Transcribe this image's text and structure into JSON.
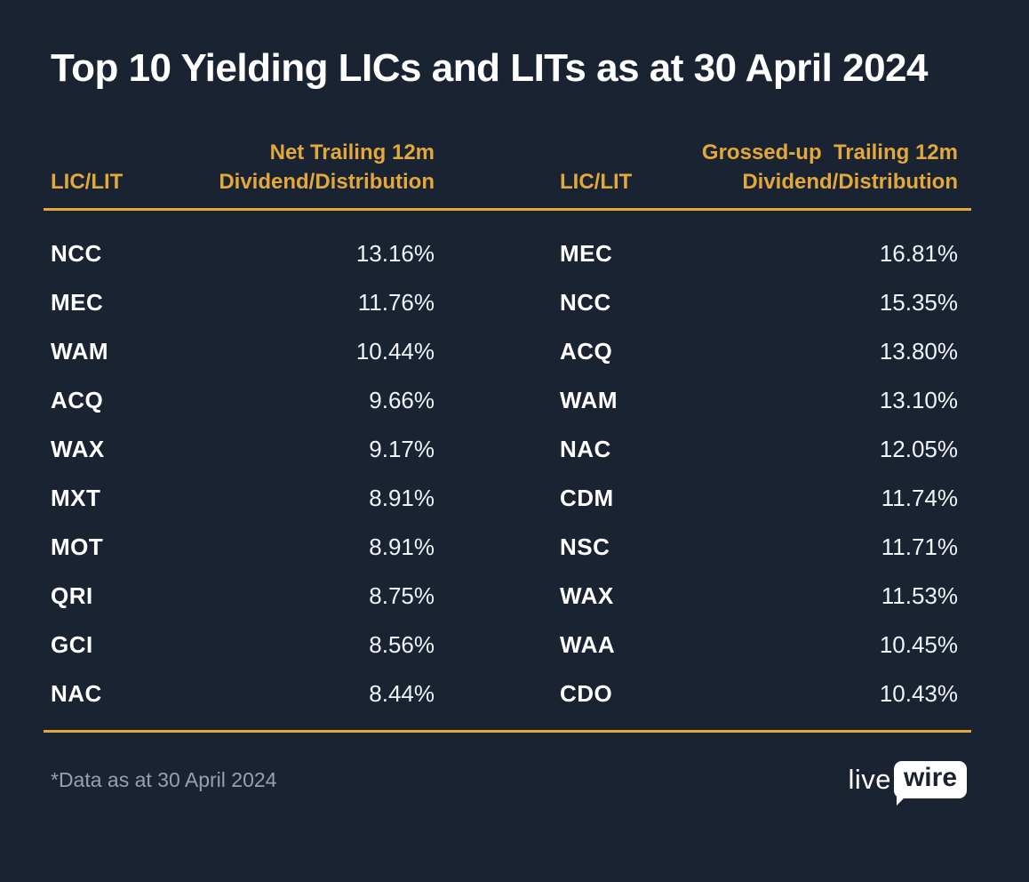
{
  "title": "Top 10 Yielding LICs and LITs as at 30 April 2024",
  "tables": [
    {
      "col1_header": "LIC/LIT",
      "col2_header_line1": "Net Trailing 12m",
      "col2_header_line2": "Dividend/Distribution",
      "rows": [
        {
          "ticker": "NCC",
          "value": "13.16%"
        },
        {
          "ticker": "MEC",
          "value": "11.76%"
        },
        {
          "ticker": "WAM",
          "value": "10.44%"
        },
        {
          "ticker": "ACQ",
          "value": "9.66%"
        },
        {
          "ticker": "WAX",
          "value": "9.17%"
        },
        {
          "ticker": "MXT",
          "value": "8.91%"
        },
        {
          "ticker": "MOT",
          "value": "8.91%"
        },
        {
          "ticker": "QRI",
          "value": "8.75%"
        },
        {
          "ticker": "GCI",
          "value": "8.56%"
        },
        {
          "ticker": "NAC",
          "value": "8.44%"
        }
      ]
    },
    {
      "col1_header": "LIC/LIT",
      "col2_header_line1": "Grossed-up  Trailing 12m",
      "col2_header_line2": "Dividend/Distribution",
      "rows": [
        {
          "ticker": "MEC",
          "value": "16.81%"
        },
        {
          "ticker": "NCC",
          "value": "15.35%"
        },
        {
          "ticker": "ACQ",
          "value": "13.80%"
        },
        {
          "ticker": "WAM",
          "value": "13.10%"
        },
        {
          "ticker": "NAC",
          "value": "12.05%"
        },
        {
          "ticker": "CDM",
          "value": "11.74%"
        },
        {
          "ticker": "NSC",
          "value": "11.71%"
        },
        {
          "ticker": "WAX",
          "value": "11.53%"
        },
        {
          "ticker": "WAA",
          "value": "10.45%"
        },
        {
          "ticker": "CDO",
          "value": "10.43%"
        }
      ]
    }
  ],
  "footnote": "*Data as at 30 April 2024",
  "logo": {
    "live": "live",
    "wire": "wire"
  },
  "colors": {
    "background": "#1A2332",
    "accent_gold": "#E3A83B",
    "ticker_white": "#FFFFFF",
    "value_white": "#F0F3F7",
    "footnote_gray": "#94A0B4"
  },
  "chart_data": [
    {
      "type": "table",
      "title": "Top 10 Yielding LICs and LITs as at 30 April 2024",
      "columns": [
        "LIC/LIT",
        "Net Trailing 12m Dividend/Distribution"
      ],
      "rows": [
        [
          "NCC",
          "13.16%"
        ],
        [
          "MEC",
          "11.76%"
        ],
        [
          "WAM",
          "10.44%"
        ],
        [
          "ACQ",
          "9.66%"
        ],
        [
          "WAX",
          "9.17%"
        ],
        [
          "MXT",
          "8.91%"
        ],
        [
          "MOT",
          "8.91%"
        ],
        [
          "QRI",
          "8.75%"
        ],
        [
          "GCI",
          "8.56%"
        ],
        [
          "NAC",
          "8.44%"
        ]
      ],
      "note": "*Data as at 30 April 2024"
    },
    {
      "type": "table",
      "title": "Top 10 Yielding LICs and LITs as at 30 April 2024",
      "columns": [
        "LIC/LIT",
        "Grossed-up Trailing 12m Dividend/Distribution"
      ],
      "rows": [
        [
          "MEC",
          "16.81%"
        ],
        [
          "NCC",
          "15.35%"
        ],
        [
          "ACQ",
          "13.80%"
        ],
        [
          "WAM",
          "13.10%"
        ],
        [
          "NAC",
          "12.05%"
        ],
        [
          "CDM",
          "11.74%"
        ],
        [
          "NSC",
          "11.71%"
        ],
        [
          "WAX",
          "11.53%"
        ],
        [
          "WAA",
          "10.45%"
        ],
        [
          "CDO",
          "10.43%"
        ]
      ],
      "note": "*Data as at 30 April 2024"
    }
  ]
}
